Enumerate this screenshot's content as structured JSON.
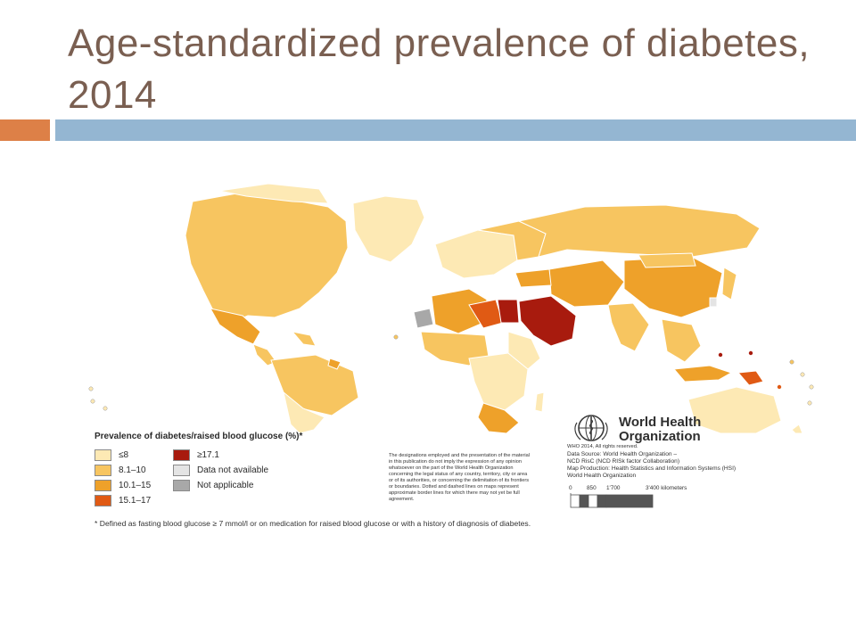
{
  "slide": {
    "title": "Age-standardized prevalence of diabetes, 2014"
  },
  "legend": {
    "title": "Prevalence of diabetes/raised blood glucose (%)*",
    "items": [
      {
        "label": "≤8",
        "color": "#fde9b4"
      },
      {
        "label": "8.1–10",
        "color": "#f7c560"
      },
      {
        "label": "10.1–15",
        "color": "#eea12a"
      },
      {
        "label": "15.1–17",
        "color": "#e05a14"
      },
      {
        "label": "≥17.1",
        "color": "#a81b0e"
      },
      {
        "label": "Data not available",
        "color": "#e4e4e4"
      },
      {
        "label": "Not applicable",
        "color": "#a8a8a8"
      }
    ]
  },
  "disclaimer": "The designations employed and the presentation of the material in this publication do not imply the expression of any opinion whatsoever on the part of the World Health Organization concerning the legal status of any country, territory, city or area or of its authorities, or concerning the delimitation of its frontiers or boundaries. Dotted and dashed lines on maps represent approximate border lines for which there may not yet be full agreement.",
  "who": {
    "name": "World Health Organization",
    "copyright": "WHO 2014, All rights reserved.",
    "credits": [
      "Data Source: World Health Organization –",
      "NCD RisC (NCD RISk factor Collaboration)",
      "Map Production: Health Statistics and Information Systems (HSI)",
      "World Health Organization"
    ]
  },
  "scale": {
    "labels": [
      "0",
      "850",
      "1'700",
      "3'400 kilometers"
    ]
  },
  "footnote": "* Defined as fasting blood glucose ≥ 7 mmol/l or on medication for raised blood glucose or with a history of diagnosis of diabetes."
}
